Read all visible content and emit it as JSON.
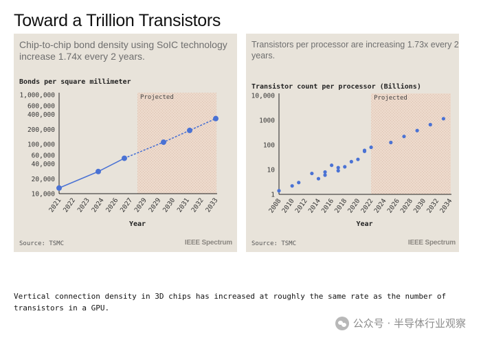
{
  "page_title": "Toward a Trillion Transistors",
  "caption": "Vertical connection density in 3D chips has increased at roughly the same rate as the number of transistors in a GPU.",
  "watermark": {
    "icon": "wechat-icon",
    "text": "公众号 · 半导体行业观察"
  },
  "colors": {
    "panel_bg": "#e8e3da",
    "projected_bg": "#ecd9cb",
    "series": "#4a72d4",
    "axis": "#222222"
  },
  "chart_data": [
    {
      "type": "line",
      "subtitle": "Chip-to-chip bond density using SoIC technology increase 1.74x every 2 years.",
      "ylabel": "Bonds per square millimeter",
      "xlabel": "Year",
      "projected_label": "Projected",
      "projected_range": [
        2027,
        2033
      ],
      "y_scale": "log",
      "ylim": [
        10000,
        1000000
      ],
      "xlim": [
        2021,
        2033
      ],
      "x_ticks": [
        "2021",
        "2022",
        "2023",
        "2024",
        "2026",
        "2027",
        "2029",
        "2029",
        "2030",
        "2031",
        "2032",
        "2033"
      ],
      "y_ticks": [
        {
          "value": 1000000,
          "label": "1,000,000"
        },
        {
          "value": 600000,
          "label": "600,000"
        },
        {
          "value": 400000,
          "label": "400,000"
        },
        {
          "value": 200000,
          "label": "200,000"
        },
        {
          "value": 100000,
          "label": "100,000"
        },
        {
          "value": 60000,
          "label": "60,000"
        },
        {
          "value": 40000,
          "label": "40,000"
        },
        {
          "value": 20000,
          "label": "20,000"
        },
        {
          "value": 10000,
          "label": "10,000"
        }
      ],
      "series": [
        {
          "points": [
            {
              "x": 2021,
              "y": 13000
            },
            {
              "x": 2024,
              "y": 28000
            },
            {
              "x": 2026,
              "y": 52000
            },
            {
              "x": 2029,
              "y": 110000
            },
            {
              "x": 2031,
              "y": 190000
            },
            {
              "x": 2033,
              "y": 330000
            }
          ],
          "projected_from": 2026
        }
      ],
      "source": "Source: TSMC",
      "logo": "IEEE Spectrum"
    },
    {
      "type": "scatter",
      "subtitle": "Transistors per processor are increasing 1.73x every 2 years.",
      "ylabel": "Transistor count per processor (Billions)",
      "xlabel": "Year",
      "projected_label": "Projected",
      "projected_range": [
        2022,
        2034
      ],
      "y_scale": "log",
      "ylim": [
        1,
        10000
      ],
      "xlim": [
        2008,
        2034
      ],
      "x_ticks": [
        "2008",
        "2010",
        "2012",
        "2014",
        "2016",
        "2018",
        "2020",
        "2022",
        "2024",
        "2026",
        "2028",
        "2030",
        "2032",
        "2034"
      ],
      "y_ticks": [
        {
          "value": 10000,
          "label": "10,000"
        },
        {
          "value": 1000,
          "label": "1000"
        },
        {
          "value": 100,
          "label": "100"
        },
        {
          "value": 10,
          "label": "10"
        },
        {
          "value": 1,
          "label": "1"
        }
      ],
      "points": [
        {
          "x": 2008,
          "y": 1.4
        },
        {
          "x": 2010,
          "y": 2.2
        },
        {
          "x": 2011,
          "y": 3.0
        },
        {
          "x": 2013,
          "y": 7.0
        },
        {
          "x": 2014,
          "y": 4.3
        },
        {
          "x": 2015,
          "y": 6.0
        },
        {
          "x": 2015,
          "y": 8.0
        },
        {
          "x": 2016,
          "y": 15
        },
        {
          "x": 2017,
          "y": 9
        },
        {
          "x": 2017,
          "y": 12
        },
        {
          "x": 2018,
          "y": 13
        },
        {
          "x": 2019,
          "y": 21
        },
        {
          "x": 2020,
          "y": 26
        },
        {
          "x": 2021,
          "y": 55
        },
        {
          "x": 2021,
          "y": 60
        },
        {
          "x": 2022,
          "y": 80
        },
        {
          "x": 2025,
          "y": 125
        },
        {
          "x": 2027,
          "y": 220
        },
        {
          "x": 2029,
          "y": 380
        },
        {
          "x": 2031,
          "y": 660
        },
        {
          "x": 2033,
          "y": 1150
        }
      ],
      "source": "Source: TSMC",
      "logo": "IEEE Spectrum"
    }
  ]
}
